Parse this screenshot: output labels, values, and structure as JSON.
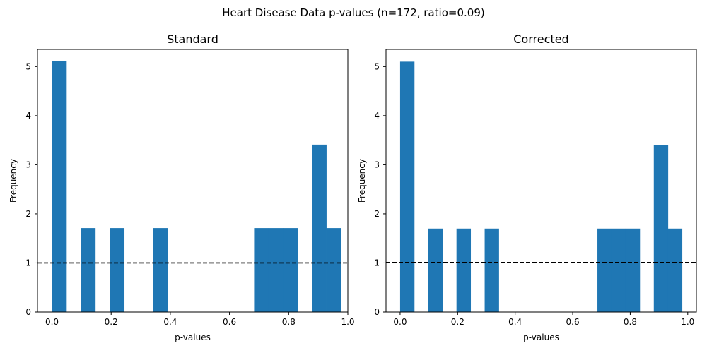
{
  "figure": {
    "suptitle": "Heart Disease Data p-values (n=172, ratio=0.09)"
  },
  "colors": {
    "bar": "#1f77b4",
    "reference_line": "#000000"
  },
  "chart_data": [
    {
      "type": "bar",
      "title": "Standard",
      "xlabel": "p-values",
      "ylabel": "Frequency",
      "xlim": [
        -0.049,
        1.0
      ],
      "ylim": [
        0,
        5.35
      ],
      "xticks": [
        0.0,
        0.2,
        0.4,
        0.6,
        0.8,
        1.0
      ],
      "xtick_labels": [
        "0.0",
        "0.2",
        "0.4",
        "0.6",
        "0.8",
        "1.0"
      ],
      "yticks": [
        0,
        1,
        2,
        3,
        4,
        5
      ],
      "ytick_labels": [
        "0",
        "1",
        "2",
        "3",
        "4",
        "5"
      ],
      "bin_width": 0.0488,
      "bin_starts": [
        0.0,
        0.0488,
        0.0976,
        0.1464,
        0.1952,
        0.244,
        0.2928,
        0.3416,
        0.3904,
        0.4392,
        0.488,
        0.5368,
        0.5856,
        0.6344,
        0.6832,
        0.732,
        0.7808,
        0.8296,
        0.8784,
        0.9272
      ],
      "values": [
        5.12,
        0,
        1.71,
        0,
        1.71,
        0,
        0,
        1.71,
        0,
        0,
        0,
        0,
        0,
        0,
        1.71,
        1.71,
        1.71,
        0,
        3.41,
        1.71
      ],
      "reference_line": {
        "y": 1,
        "style": "dashed"
      },
      "grid": false,
      "legend": "none"
    },
    {
      "type": "bar",
      "title": "Corrected",
      "xlabel": "p-values",
      "ylabel": "Frequency",
      "xlim": [
        -0.049,
        1.03
      ],
      "ylim": [
        0,
        5.35
      ],
      "xticks": [
        0.0,
        0.2,
        0.4,
        0.6,
        0.8,
        1.0
      ],
      "xtick_labels": [
        "0.0",
        "0.2",
        "0.4",
        "0.6",
        "0.8",
        "1.0"
      ],
      "yticks": [
        0,
        1,
        2,
        3,
        4,
        5
      ],
      "ytick_labels": [
        "0",
        "1",
        "2",
        "3",
        "4",
        "5"
      ],
      "bin_width": 0.049,
      "bin_starts": [
        0.0,
        0.049,
        0.098,
        0.147,
        0.196,
        0.245,
        0.294,
        0.343,
        0.392,
        0.441,
        0.49,
        0.539,
        0.588,
        0.637,
        0.686,
        0.735,
        0.784,
        0.833,
        0.882,
        0.931
      ],
      "values": [
        5.1,
        0,
        1.7,
        0,
        1.7,
        0,
        1.7,
        0,
        0,
        0,
        0,
        0,
        0,
        0,
        1.7,
        1.7,
        1.7,
        0,
        3.4,
        1.7
      ],
      "reference_line": {
        "y": 1.01,
        "style": "dashed"
      },
      "grid": false,
      "legend": "none"
    }
  ]
}
